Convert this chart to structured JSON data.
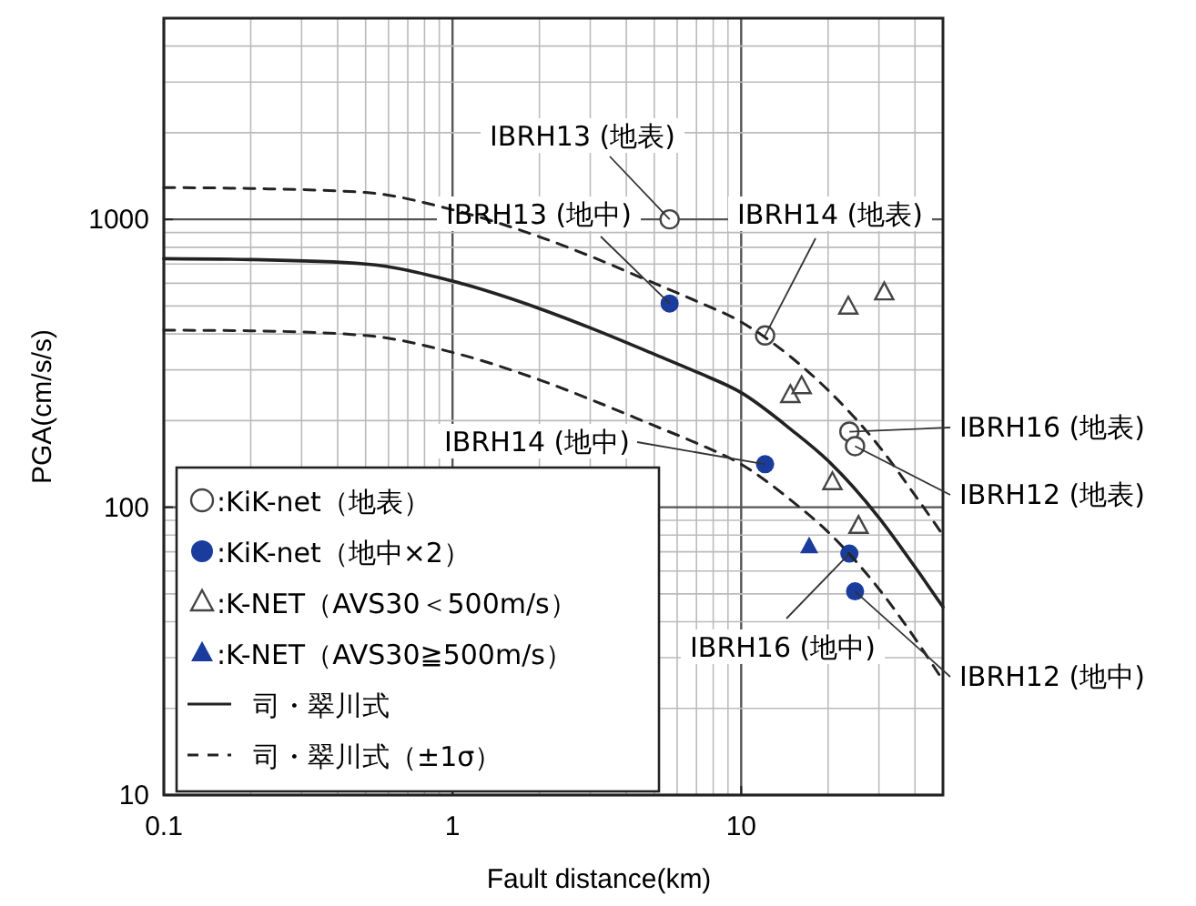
{
  "chart_data": {
    "type": "scatter",
    "xlabel": "Fault distance(km)",
    "ylabel": "PGA(cm/s/s)",
    "log": "xy",
    "xlim": [
      0.1,
      50
    ],
    "ylim": [
      10,
      5000
    ],
    "xticks": [
      0.1,
      1,
      10
    ],
    "yticks": [
      10,
      100,
      1000
    ],
    "grid": true,
    "legend": "bottom left",
    "series": [
      {
        "name": ":KiK-net（地表）",
        "marker": "circle",
        "color": "#444444",
        "x": [
          5.65,
          12.1,
          23.7,
          24.8
        ],
        "values": [
          1000,
          395,
          183,
          163
        ]
      },
      {
        "name": ":KiK-net（地中×2）",
        "marker": "circle",
        "color": "#1a3c9c",
        "x": [
          5.65,
          12.1,
          23.7,
          24.8
        ],
        "values": [
          510,
          141,
          69,
          51
        ]
      },
      {
        "name": ":K-NET（AVS30＜500m/s）",
        "marker": "triangle",
        "color": "#444444",
        "x": [
          23.5,
          31.3,
          14.8,
          16.2,
          20.7,
          25.5
        ],
        "values": [
          497,
          557,
          245,
          263,
          122,
          86
        ]
      },
      {
        "name": ":K-NET（AVS30≧500m/s）",
        "marker": "triangle",
        "color": "#1a3c9c",
        "x": [
          17.2
        ],
        "values": [
          73
        ]
      },
      {
        "name": "司・翠川式",
        "type": "line",
        "line_style": "solid",
        "color": "#222222",
        "x": [
          0.1,
          0.2,
          0.5,
          1,
          2,
          3,
          5,
          7,
          10,
          15,
          20,
          30,
          40,
          50
        ],
        "values": [
          730,
          725,
          700,
          610,
          490,
          420,
          340,
          295,
          250,
          185,
          145,
          92,
          62,
          45
        ]
      },
      {
        "name": "司・翠川式（±1σ）",
        "type": "line",
        "line_style": "dashed",
        "color": "#222222",
        "x": [
          0.1,
          0.2,
          0.5,
          1,
          2,
          3,
          5,
          7,
          10,
          15,
          20,
          30,
          40,
          50
        ],
        "values": [
          1290,
          1280,
          1240,
          1080,
          870,
          745,
          600,
          520,
          440,
          330,
          255,
          163,
          110,
          80
        ]
      },
      {
        "type": "line",
        "line_style": "dashed",
        "color": "#222222",
        "x": [
          0.1,
          0.2,
          0.5,
          1,
          2,
          3,
          5,
          7,
          10,
          15,
          20,
          30,
          40,
          50
        ],
        "values": [
          412,
          410,
          395,
          345,
          277,
          237,
          192,
          167,
          141,
          105,
          82,
          52,
          35,
          25
        ]
      }
    ],
    "annotations": [
      {
        "text": "IBRH13 (地表)",
        "x": 5.65,
        "y": 1000
      },
      {
        "text": "IBRH13 (地中)",
        "x": 5.65,
        "y": 510
      },
      {
        "text": "IBRH14 (地表)",
        "x": 12.1,
        "y": 395
      },
      {
        "text": "IBRH14 (地中)",
        "x": 12.1,
        "y": 141
      },
      {
        "text": "IBRH16 (地表)",
        "x": 23.7,
        "y": 183
      },
      {
        "text": "IBRH12 (地表)",
        "x": 24.8,
        "y": 163
      },
      {
        "text": "IBRH16 (地中)",
        "x": 23.7,
        "y": 69
      },
      {
        "text": "IBRH12 (地中)",
        "x": 24.8,
        "y": 51
      }
    ]
  }
}
